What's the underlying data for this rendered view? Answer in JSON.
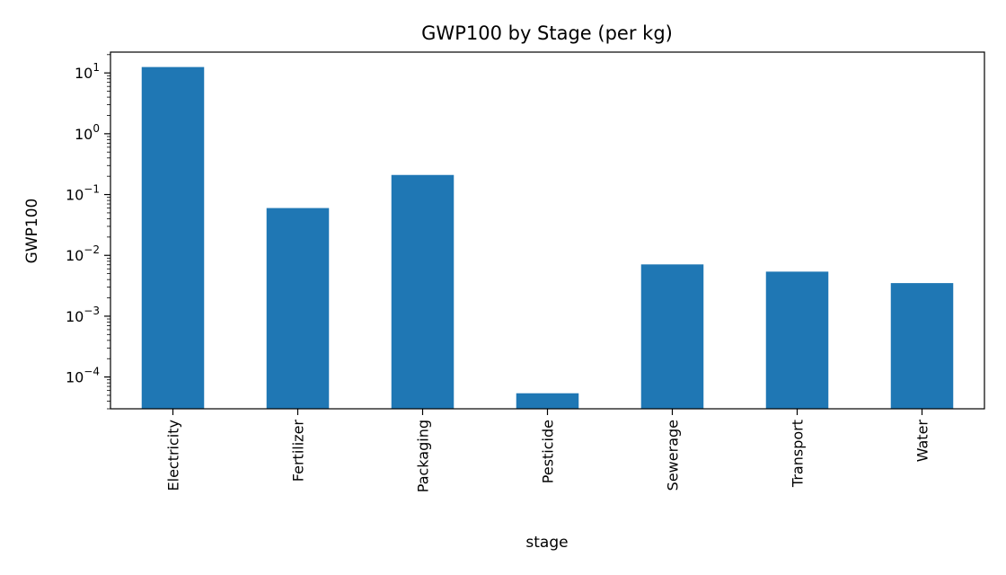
{
  "chart_data": {
    "type": "bar",
    "title": "GWP100 by Stage (per kg)",
    "xlabel": "stage",
    "ylabel": "GWP100",
    "yscale": "log",
    "ylim": [
      3e-05,
      22
    ],
    "grid": false,
    "legend": "none",
    "bar_color": "#1f77b4",
    "categories": [
      "Electricity",
      "Fertilizer",
      "Packaging",
      "Pesticide",
      "Sewerage",
      "Transport",
      "Water"
    ],
    "values": [
      12.5,
      0.06,
      0.21,
      5.4e-05,
      0.0071,
      0.0054,
      0.0035
    ],
    "yticks": [
      {
        "base": "10",
        "exp": "1",
        "value": 10
      },
      {
        "base": "10",
        "exp": "0",
        "value": 1
      },
      {
        "base": "10",
        "exp": "−1",
        "value": 0.1
      },
      {
        "base": "10",
        "exp": "−2",
        "value": 0.01
      },
      {
        "base": "10",
        "exp": "−3",
        "value": 0.001
      },
      {
        "base": "10",
        "exp": "−4",
        "value": 0.0001
      }
    ]
  }
}
